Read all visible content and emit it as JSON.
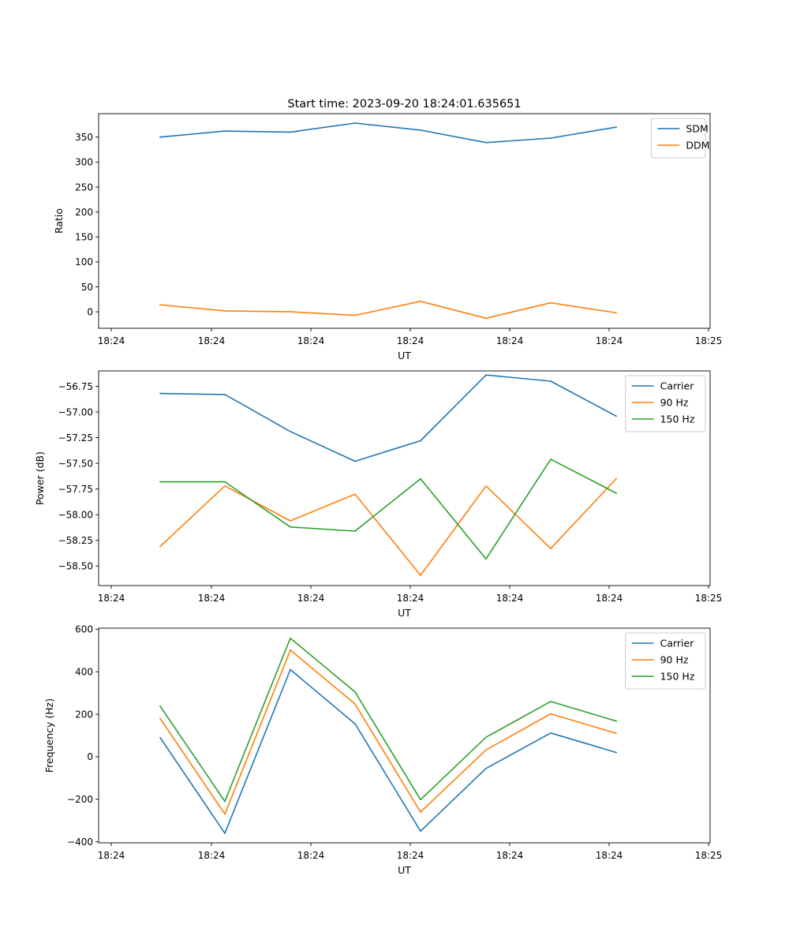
{
  "chart_data": [
    {
      "type": "line",
      "title": "Start time: 2023-09-20 18:24:01.635651",
      "xlabel": "UT",
      "ylabel": "Ratio",
      "x_tick_labels": [
        "18:24",
        "18:24",
        "18:24",
        "18:24",
        "18:24",
        "18:24",
        "18:25"
      ],
      "y_ticks": [
        0,
        50,
        100,
        150,
        200,
        250,
        300,
        350
      ],
      "y_tick_labels": [
        "0",
        "50",
        "100",
        "150",
        "200",
        "250",
        "300",
        "350"
      ],
      "ylim": [
        -33,
        397
      ],
      "legend_location": "upper right",
      "grid": false,
      "series": [
        {
          "name": "SDM",
          "color": "#1f77b4",
          "values": [
            350,
            362,
            360,
            378,
            364,
            339,
            348,
            370
          ]
        },
        {
          "name": "DDM",
          "color": "#ff7f0e",
          "values": [
            14,
            2,
            0,
            -7,
            21,
            -13,
            18,
            -2
          ]
        }
      ]
    },
    {
      "type": "line",
      "title": "",
      "xlabel": "UT",
      "ylabel": "Power (dB)",
      "x_tick_labels": [
        "18:24",
        "18:24",
        "18:24",
        "18:24",
        "18:24",
        "18:24",
        "18:25"
      ],
      "y_ticks": [
        -56.75,
        -57.0,
        -57.25,
        -57.5,
        -57.75,
        -58.0,
        -58.25,
        -58.5
      ],
      "y_tick_labels": [
        "−56.75",
        "−57.00",
        "−57.25",
        "−57.50",
        "−57.75",
        "−58.00",
        "−58.25",
        "−58.50"
      ],
      "ylim": [
        -58.69,
        -56.6
      ],
      "legend_location": "upper right",
      "grid": false,
      "series": [
        {
          "name": "Carrier",
          "color": "#1f77b4",
          "values": [
            -56.82,
            -56.83,
            -57.19,
            -57.48,
            -57.28,
            -56.64,
            -56.7,
            -57.04
          ]
        },
        {
          "name": "90 Hz",
          "color": "#ff7f0e",
          "values": [
            -58.31,
            -57.72,
            -58.06,
            -57.8,
            -58.59,
            -57.72,
            -58.33,
            -57.65
          ]
        },
        {
          "name": "150 Hz",
          "color": "#2ca02c",
          "values": [
            -57.68,
            -57.68,
            -58.12,
            -58.16,
            -57.65,
            -58.43,
            -57.46,
            -57.79
          ]
        }
      ]
    },
    {
      "type": "line",
      "title": "",
      "xlabel": "UT",
      "ylabel": "Frequency (Hz)",
      "x_tick_labels": [
        "18:24",
        "18:24",
        "18:24",
        "18:24",
        "18:24",
        "18:24",
        "18:25"
      ],
      "y_ticks": [
        600,
        400,
        200,
        0,
        -200,
        -400
      ],
      "y_tick_labels": [
        "600",
        "400",
        "200",
        "0",
        "−200",
        "−400"
      ],
      "ylim": [
        -405,
        605
      ],
      "legend_location": "upper right",
      "grid": false,
      "series": [
        {
          "name": "Carrier",
          "color": "#1f77b4",
          "values": [
            90,
            -360,
            410,
            155,
            -350,
            -55,
            112,
            20
          ]
        },
        {
          "name": "90 Hz",
          "color": "#ff7f0e",
          "values": [
            180,
            -270,
            502,
            248,
            -260,
            32,
            202,
            110
          ]
        },
        {
          "name": "150 Hz",
          "color": "#2ca02c",
          "values": [
            238,
            -210,
            558,
            305,
            -202,
            92,
            260,
            168
          ]
        }
      ]
    }
  ]
}
